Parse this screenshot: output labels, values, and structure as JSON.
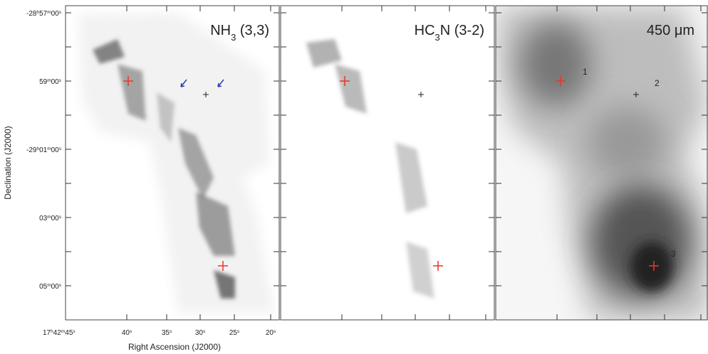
{
  "y_axis": {
    "title": "Declination (J2000)",
    "ticks": [
      [
        "-28",
        "h",
        "57",
        "m",
        "00",
        "s"
      ],
      [
        "59",
        "m",
        "00",
        "s"
      ],
      [
        "-29",
        "h",
        "01",
        "m",
        "00",
        "s"
      ],
      [
        "03",
        "m",
        "00",
        "s"
      ],
      [
        "05",
        "m",
        "00",
        "s"
      ]
    ]
  },
  "x_axis": {
    "title": "Right Ascension (J2000)",
    "ticks": [
      [
        "17",
        "h",
        "42",
        "m",
        "45",
        "s"
      ],
      [
        "40",
        "s"
      ],
      [
        "35",
        "s"
      ],
      [
        "30",
        "s"
      ],
      [
        "25",
        "s"
      ],
      [
        "20",
        "s"
      ]
    ]
  },
  "panels": [
    {
      "title": [
        "NH",
        "3",
        " (3,3)"
      ]
    },
    {
      "title": [
        "HC",
        "3",
        "N (3-2)"
      ]
    },
    {
      "title": [
        "450 μm"
      ]
    }
  ],
  "source_labels": [
    "1",
    "2",
    "3"
  ]
}
